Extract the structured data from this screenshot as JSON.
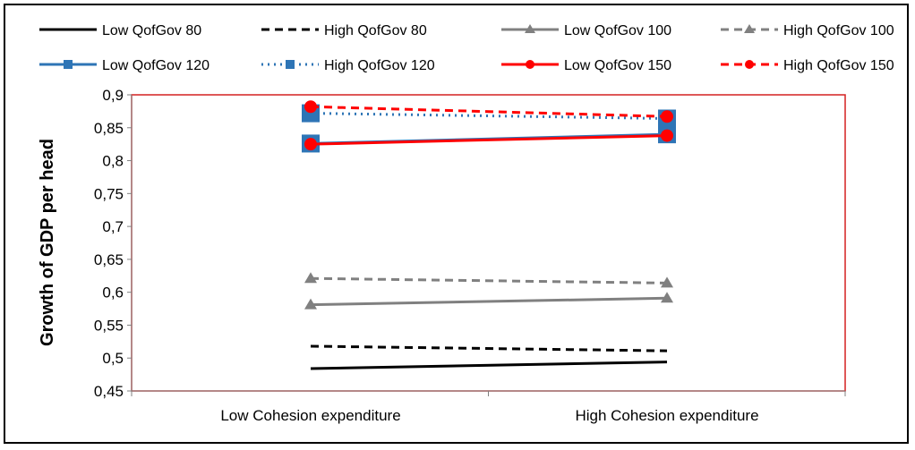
{
  "chart_data": {
    "type": "line",
    "categories": [
      "Low Cohesion expenditure",
      "High Cohesion expenditure"
    ],
    "ylabel": "Growth of GDP per head",
    "xlabel": "",
    "title": "",
    "ylim": [
      0.45,
      0.9
    ],
    "yticks": [
      "0,45",
      "0,5",
      "0,55",
      "0,6",
      "0,65",
      "0,7",
      "0,75",
      "0,8",
      "0,85",
      "0,9"
    ],
    "legend_position": "top",
    "grid": false,
    "plot_border_color": "#d42020",
    "series": [
      {
        "name": "Low QofGov 80",
        "values": [
          0.484,
          0.494
        ],
        "color": "#000000",
        "dash": "solid",
        "marker": "none"
      },
      {
        "name": "High QofGov 80",
        "values": [
          0.518,
          0.511
        ],
        "color": "#000000",
        "dash": "dashed",
        "marker": "none"
      },
      {
        "name": "Low QofGov 100",
        "values": [
          0.581,
          0.591
        ],
        "color": "#808080",
        "dash": "solid",
        "marker": "triangle"
      },
      {
        "name": "High QofGov 100",
        "values": [
          0.621,
          0.614
        ],
        "color": "#808080",
        "dash": "dashed",
        "marker": "triangle"
      },
      {
        "name": "Low QofGov 120",
        "values": [
          0.826,
          0.84
        ],
        "color": "#2e75b6",
        "dash": "solid",
        "marker": "square"
      },
      {
        "name": "High QofGov 120",
        "values": [
          0.872,
          0.864
        ],
        "color": "#2e75b6",
        "dash": "dotted",
        "marker": "square"
      },
      {
        "name": "Low QofGov 150",
        "values": [
          0.825,
          0.838
        ],
        "color": "#ff0000",
        "dash": "solid",
        "marker": "circle"
      },
      {
        "name": "High QofGov 150",
        "values": [
          0.882,
          0.867
        ],
        "color": "#ff0000",
        "dash": "dashed",
        "marker": "circle"
      }
    ]
  }
}
